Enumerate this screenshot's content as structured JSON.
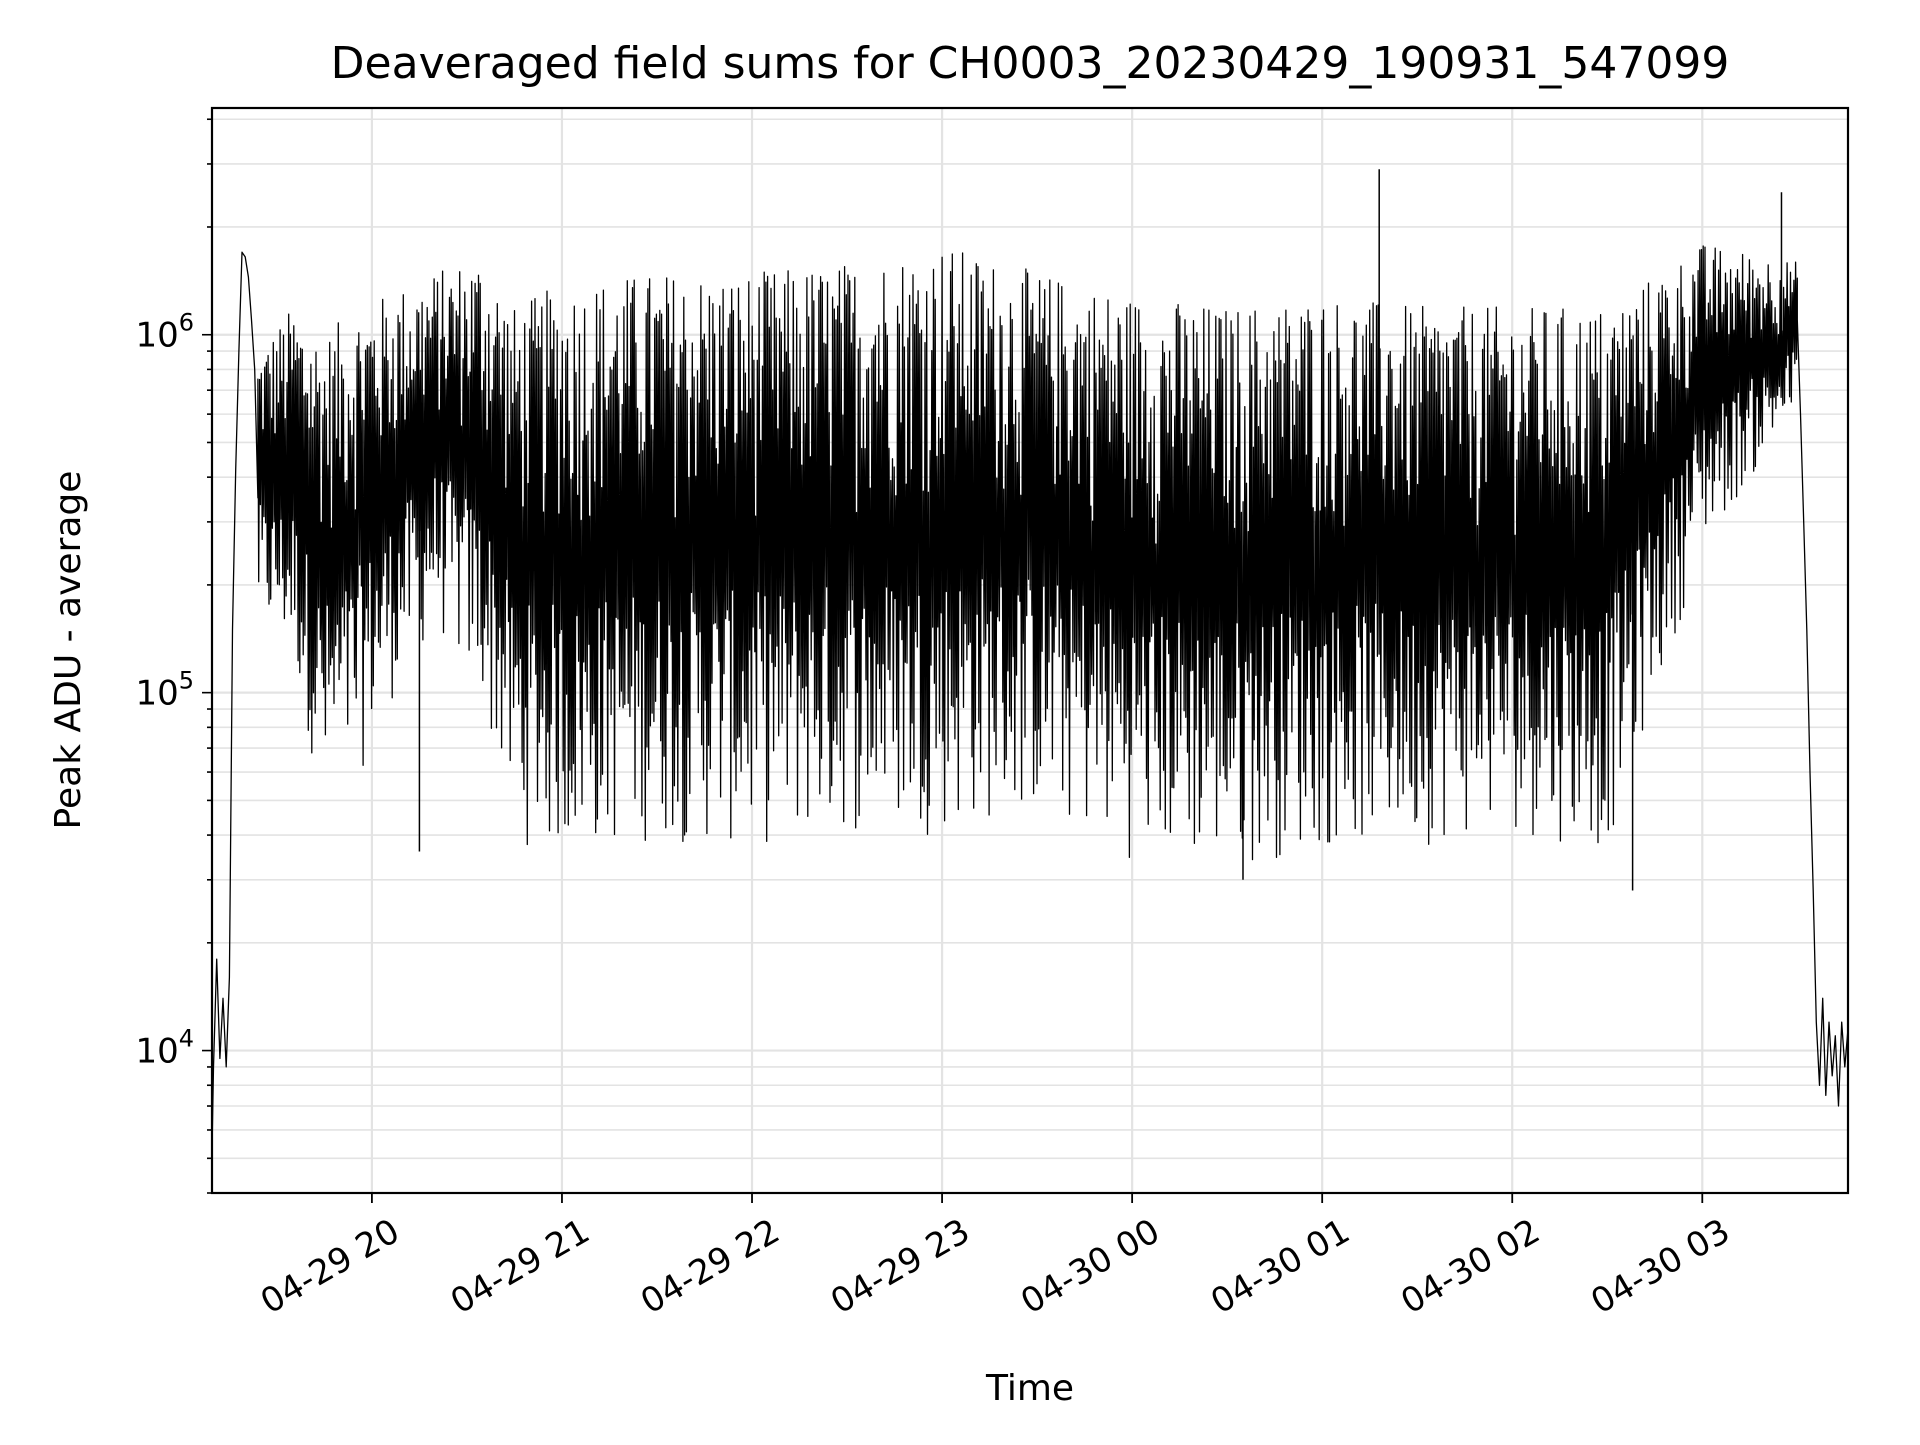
{
  "chart_data": {
    "type": "line",
    "title": "Deaveraged field sums for CH0003_20230429_190931_547099",
    "xlabel": "Time",
    "ylabel": "Peak ADU - average",
    "yscale": "log",
    "grid": true,
    "x_range": [
      "2023-04-29 19:09:31",
      "2023-04-30 03:46:00"
    ],
    "ylim": [
      4000,
      4300000
    ],
    "x_ticks": [
      {
        "label": "04-29 20",
        "time": "2023-04-29 20:00"
      },
      {
        "label": "04-29 21",
        "time": "2023-04-29 21:00"
      },
      {
        "label": "04-29 22",
        "time": "2023-04-29 22:00"
      },
      {
        "label": "04-29 23",
        "time": "2023-04-29 23:00"
      },
      {
        "label": "04-30 00",
        "time": "2023-04-30 00:00"
      },
      {
        "label": "04-30 01",
        "time": "2023-04-30 01:00"
      },
      {
        "label": "04-30 02",
        "time": "2023-04-30 02:00"
      },
      {
        "label": "04-30 03",
        "time": "2023-04-30 03:00"
      }
    ],
    "y_ticks": [
      {
        "base": "10",
        "exp": "4",
        "value": 10000
      },
      {
        "base": "10",
        "exp": "5",
        "value": 100000
      },
      {
        "base": "10",
        "exp": "6",
        "value": 1000000
      }
    ],
    "series": [
      {
        "color": "#000000",
        "points": [
          [
            "2023-04-29 19:09:31",
            5200
          ],
          [
            "2023-04-29 19:10:00",
            9000
          ],
          [
            "2023-04-29 19:11:00",
            18000
          ],
          [
            "2023-04-29 19:12:00",
            9500
          ],
          [
            "2023-04-29 19:13:00",
            14000
          ],
          [
            "2023-04-29 19:14:00",
            9000
          ],
          [
            "2023-04-29 19:15:00",
            16000
          ],
          [
            "2023-04-29 19:16:00",
            150000
          ],
          [
            "2023-04-29 19:17:00",
            420000
          ],
          [
            "2023-04-29 19:18:00",
            900000
          ],
          [
            "2023-04-29 19:19:00",
            1700000
          ],
          [
            "2023-04-29 19:20:00",
            1650000
          ],
          [
            "2023-04-29 19:21:00",
            1450000
          ],
          [
            "2023-04-29 19:22:00",
            1100000
          ],
          [
            "2023-04-29 19:23:00",
            800000
          ],
          [
            "2023-04-29 19:24:00",
            350000
          ]
        ],
        "dense_segment": {
          "from": "2023-04-29 19:24:00",
          "to": "2023-04-30 03:30:00",
          "envelope": [
            {
              "time": "2023-04-29 19:24:00",
              "low": 150000,
              "high": 900000
            },
            {
              "time": "2023-04-29 19:35:00",
              "low": 120000,
              "high": 1200000
            },
            {
              "time": "2023-04-29 19:45:00",
              "low": 45000,
              "high": 1000000
            },
            {
              "time": "2023-04-29 19:55:00",
              "low": 55000,
              "high": 1200000
            },
            {
              "time": "2023-04-29 20:05:00",
              "low": 90000,
              "high": 1300000
            },
            {
              "time": "2023-04-29 20:20:00",
              "low": 150000,
              "high": 1500000
            },
            {
              "time": "2023-04-29 20:35:00",
              "low": 90000,
              "high": 1700000
            },
            {
              "time": "2023-04-29 20:45:00",
              "low": 38000,
              "high": 1200000
            },
            {
              "time": "2023-04-29 21:00:00",
              "low": 34000,
              "high": 1400000
            },
            {
              "time": "2023-04-29 21:30:00",
              "low": 38000,
              "high": 1500000
            },
            {
              "time": "2023-04-29 22:00:00",
              "low": 36000,
              "high": 1500000
            },
            {
              "time": "2023-04-29 22:30:00",
              "low": 40000,
              "high": 1600000
            },
            {
              "time": "2023-04-29 23:00:00",
              "low": 40000,
              "high": 1800000
            },
            {
              "time": "2023-04-29 23:30:00",
              "low": 45000,
              "high": 1500000
            },
            {
              "time": "2023-04-30 00:00:00",
              "low": 34000,
              "high": 1300000
            },
            {
              "time": "2023-04-30 00:30:00",
              "low": 32000,
              "high": 1200000
            },
            {
              "time": "2023-04-30 01:00:00",
              "low": 36000,
              "high": 1300000
            },
            {
              "time": "2023-04-30 01:30:00",
              "low": 37000,
              "high": 1200000
            },
            {
              "time": "2023-04-30 02:00:00",
              "low": 40000,
              "high": 1200000
            },
            {
              "time": "2023-04-30 02:30:00",
              "low": 36000,
              "high": 1200000
            },
            {
              "time": "2023-04-30 03:00:00",
              "low": 250000,
              "high": 1800000
            },
            {
              "time": "2023-04-30 03:30:00",
              "low": 600000,
              "high": 1600000
            }
          ]
        },
        "spikes": [
          {
            "time": "2023-04-30 01:18:00",
            "value": 2900000
          },
          {
            "time": "2023-04-30 03:25:00",
            "value": 2500000
          },
          {
            "time": "2023-04-29 20:15:00",
            "value": 36000
          },
          {
            "time": "2023-04-30 02:38:00",
            "value": 28000
          },
          {
            "time": "2023-04-30 00:35:00",
            "value": 30000
          }
        ],
        "tail_points": [
          [
            "2023-04-30 03:30:00",
            1100000
          ],
          [
            "2023-04-30 03:31:00",
            600000
          ],
          [
            "2023-04-30 03:32:00",
            300000
          ],
          [
            "2023-04-30 03:33:00",
            150000
          ],
          [
            "2023-04-30 03:34:00",
            60000
          ],
          [
            "2023-04-30 03:35:00",
            28000
          ],
          [
            "2023-04-30 03:36:00",
            12000
          ],
          [
            "2023-04-30 03:37:00",
            8000
          ],
          [
            "2023-04-30 03:38:00",
            14000
          ],
          [
            "2023-04-30 03:39:00",
            7500
          ],
          [
            "2023-04-30 03:40:00",
            12000
          ],
          [
            "2023-04-30 03:41:00",
            8500
          ],
          [
            "2023-04-30 03:42:00",
            11000
          ],
          [
            "2023-04-30 03:43:00",
            7000
          ],
          [
            "2023-04-30 03:44:00",
            12000
          ],
          [
            "2023-04-30 03:45:00",
            9000
          ],
          [
            "2023-04-30 03:46:00",
            11500
          ]
        ]
      }
    ]
  }
}
